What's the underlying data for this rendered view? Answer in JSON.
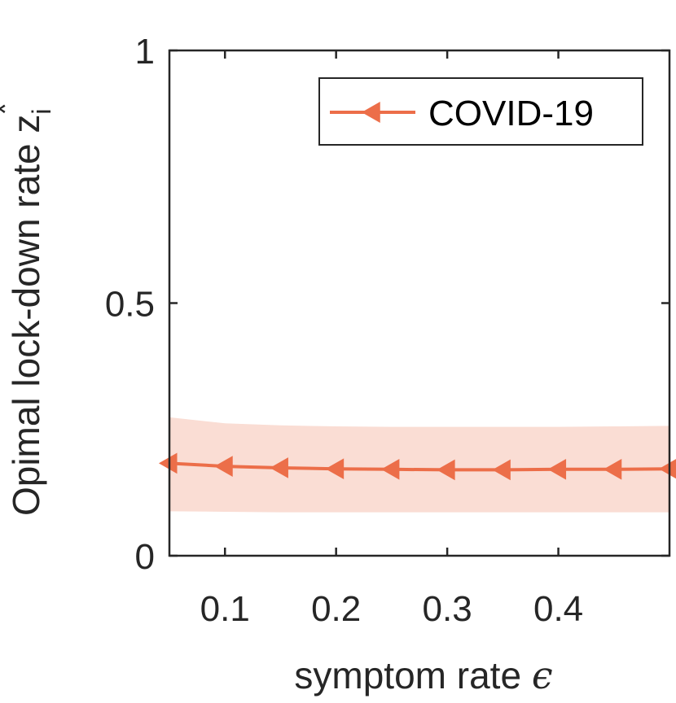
{
  "chart_data": {
    "type": "line",
    "xlabel": "symptom rate",
    "xlabel_symbol": "ϵ",
    "ylabel": "Opimal lock-down rate z",
    "ylabel_sub": "i",
    "ylabel_sup": "*",
    "xlim": [
      0.05,
      0.5
    ],
    "ylim": [
      0,
      1
    ],
    "xticks": [
      0.1,
      0.2,
      0.3,
      0.4
    ],
    "xtick_labels": [
      "0.1",
      "0.2",
      "0.3",
      "0.4"
    ],
    "yticks": [
      0,
      0.5,
      1
    ],
    "ytick_labels": [
      "0",
      "0.5",
      "1"
    ],
    "grid": false,
    "legend_position": "top-right",
    "series": [
      {
        "name": "COVID-19",
        "color": "#EC6E49",
        "band_color": "#FADDD4",
        "marker": "triangle-left",
        "x": [
          0.05,
          0.1,
          0.15,
          0.2,
          0.25,
          0.3,
          0.35,
          0.4,
          0.45,
          0.5
        ],
        "y": [
          0.183,
          0.177,
          0.174,
          0.172,
          0.171,
          0.17,
          0.17,
          0.171,
          0.171,
          0.172
        ],
        "band_upper": [
          0.274,
          0.262,
          0.258,
          0.256,
          0.255,
          0.255,
          0.255,
          0.255,
          0.256,
          0.257
        ],
        "band_lower": [
          0.088,
          0.087,
          0.086,
          0.086,
          0.086,
          0.086,
          0.086,
          0.086,
          0.086,
          0.086
        ]
      }
    ]
  }
}
